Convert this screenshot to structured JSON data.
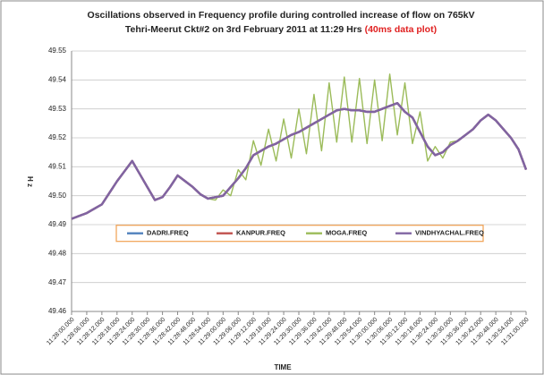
{
  "chart_data": {
    "type": "line",
    "title_line1": "Oscillations observed in Frequency profile during controlled increase of flow on 765kV",
    "title_line2": "Tehri-Meerut Ckt#2 on 3rd February 2011 at 11:29 Hrs",
    "title_note": "(40ms data plot)",
    "x_label": "TIME",
    "y_label": "H z",
    "categories": [
      "11:28:00.000",
      null,
      "11:28:06.000",
      null,
      "11:28:12.000",
      null,
      "11:28:18.000",
      null,
      "11:28:24.000",
      null,
      "11:28:30.000",
      null,
      "11:28:36.000",
      null,
      "11:28:42.000",
      null,
      "11:28:48.000",
      null,
      "11:28:54.000",
      null,
      "11:29:00.000",
      null,
      "11:29:06.000",
      null,
      "11:29:12.000",
      null,
      "11:29:18.000",
      null,
      "11:29:24.000",
      null,
      "11:29:30.000",
      null,
      "11:29:36.000",
      null,
      "11:29:42.000",
      null,
      "11:29:48.000",
      null,
      "11:29:54.000",
      null,
      "11:30:00.000",
      null,
      "11:30:06.000",
      null,
      "11:30:12.000",
      null,
      "11:30:18.000",
      null,
      "11:30:24.000",
      null,
      "11:30:30.000",
      null,
      "11:30:36.000",
      null,
      "11:30:42.000",
      null,
      "11:30:48.000",
      null,
      "11:30:54.000",
      null,
      "11:31:00.000"
    ],
    "series": [
      {
        "name": "DADRI.FREQ",
        "color": "#4f81bd",
        "values": [
          49.492,
          49.493,
          49.494,
          49.4955,
          49.497,
          49.501,
          49.505,
          49.5085,
          49.512,
          49.5075,
          49.503,
          49.4985,
          49.4995,
          49.503,
          49.507,
          49.505,
          49.503,
          49.5005,
          49.499,
          49.4995,
          49.5,
          49.503,
          49.506,
          49.5095,
          49.514,
          49.5155,
          49.517,
          49.518,
          49.5195,
          49.521,
          49.522,
          49.5235,
          49.525,
          49.5265,
          49.528,
          49.5295,
          49.53,
          49.5295,
          49.5295,
          49.529,
          49.529,
          49.53,
          49.531,
          49.532,
          49.529,
          49.527,
          49.522,
          49.517,
          49.514,
          49.515,
          49.5175,
          49.519,
          49.521,
          49.523,
          49.526,
          49.528,
          49.526,
          49.523,
          49.52,
          49.516,
          49.509
        ]
      },
      {
        "name": "KANPUR.FREQ",
        "color": "#c0504d",
        "values": [
          49.492,
          49.493,
          49.494,
          49.4955,
          49.497,
          49.501,
          49.505,
          49.5085,
          49.512,
          49.5075,
          49.503,
          49.4985,
          49.4995,
          49.503,
          49.507,
          49.505,
          49.503,
          49.5005,
          49.499,
          49.4995,
          49.5,
          49.503,
          49.506,
          49.5095,
          49.514,
          49.5155,
          49.517,
          49.518,
          49.5195,
          49.521,
          49.522,
          49.5235,
          49.525,
          49.5265,
          49.528,
          49.5295,
          49.53,
          49.5295,
          49.5295,
          49.529,
          49.529,
          49.53,
          49.531,
          49.532,
          49.529,
          49.527,
          49.522,
          49.517,
          49.514,
          49.515,
          49.5175,
          49.519,
          49.521,
          49.523,
          49.526,
          49.528,
          49.526,
          49.523,
          49.52,
          49.516,
          49.509
        ]
      },
      {
        "name": "MOGA.FREQ",
        "color": "#9bbb59",
        "values": [
          49.492,
          49.493,
          49.494,
          49.4955,
          49.497,
          49.501,
          49.505,
          49.5085,
          49.512,
          49.5075,
          49.503,
          49.4985,
          49.4995,
          49.503,
          49.507,
          49.505,
          49.503,
          49.5005,
          49.499,
          49.4985,
          49.502,
          49.5,
          49.509,
          49.5055,
          49.519,
          49.5105,
          49.523,
          49.512,
          49.5265,
          49.513,
          49.53,
          49.5145,
          49.535,
          49.5155,
          49.539,
          49.5185,
          49.541,
          49.5185,
          49.5405,
          49.518,
          49.54,
          49.519,
          49.542,
          49.521,
          49.539,
          49.518,
          49.529,
          49.512,
          49.517,
          49.513,
          49.5185,
          49.519,
          49.521,
          49.523,
          49.526,
          49.528,
          49.526,
          49.523,
          49.52,
          49.516,
          49.509
        ]
      },
      {
        "name": "VINDHYACHAL.FREQ",
        "color": "#8064a2",
        "values": [
          49.492,
          49.493,
          49.494,
          49.4955,
          49.497,
          49.501,
          49.505,
          49.5085,
          49.512,
          49.5075,
          49.503,
          49.4985,
          49.4995,
          49.503,
          49.507,
          49.505,
          49.503,
          49.5005,
          49.499,
          49.4995,
          49.5,
          49.503,
          49.506,
          49.5095,
          49.514,
          49.5155,
          49.517,
          49.518,
          49.5195,
          49.521,
          49.522,
          49.5235,
          49.525,
          49.5265,
          49.528,
          49.5295,
          49.53,
          49.5295,
          49.5295,
          49.529,
          49.529,
          49.53,
          49.531,
          49.532,
          49.529,
          49.527,
          49.522,
          49.517,
          49.514,
          49.515,
          49.5175,
          49.519,
          49.521,
          49.523,
          49.526,
          49.528,
          49.526,
          49.523,
          49.52,
          49.516,
          49.509
        ]
      }
    ],
    "ylim": [
      49.46,
      49.55
    ],
    "yticks": [
      49.46,
      49.47,
      49.48,
      49.49,
      {
        "value": 49.5,
        "label": "49.50"
      },
      49.51,
      49.52,
      49.53,
      49.54,
      49.55
    ],
    "grid": true,
    "legend": "inside-lower-middle"
  }
}
